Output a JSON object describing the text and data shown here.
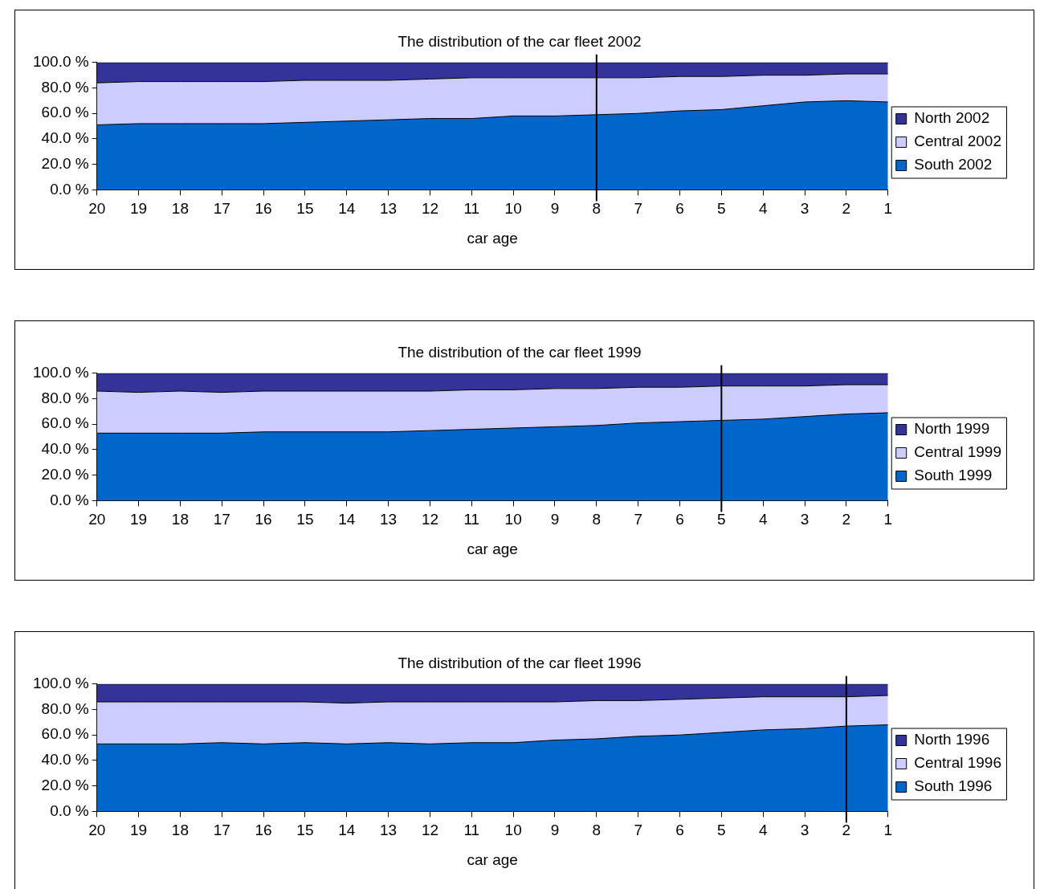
{
  "chart_data": [
    {
      "type": "area",
      "title": "The distribution of the car fleet 2002",
      "xlabel": "car age",
      "stacked": true,
      "legend": "right",
      "grid": false,
      "marker": "none",
      "categories": [
        "20",
        "19",
        "18",
        "17",
        "16",
        "15",
        "14",
        "13",
        "12",
        "11",
        "10",
        "9",
        "8",
        "7",
        "6",
        "5",
        "4",
        "3",
        "2",
        "1"
      ],
      "ylim": [
        0,
        100
      ],
      "yticks": [
        {
          "value": 0,
          "label": "0.0 %"
        },
        {
          "value": 20,
          "label": "20.0 %"
        },
        {
          "value": 40,
          "label": "40.0 %"
        },
        {
          "value": 60,
          "label": "60.0 %"
        },
        {
          "value": 80,
          "label": "80.0 %"
        },
        {
          "value": 100,
          "label": "100.0 %"
        }
      ],
      "ref_lines": [
        {
          "axis": "x",
          "value": "8",
          "color": "#000000"
        }
      ],
      "series": [
        {
          "name": "South 2002",
          "color": "#0066cc",
          "values": [
            51,
            52,
            52,
            52,
            52,
            53,
            54,
            55,
            56,
            56,
            58,
            58,
            59,
            60,
            62,
            63,
            66,
            69,
            70,
            69
          ]
        },
        {
          "name": "Central 2002",
          "color": "#ccccff",
          "values": [
            33,
            33,
            33,
            33,
            33,
            33,
            32,
            31,
            31,
            32,
            30,
            30,
            29,
            28,
            27,
            26,
            24,
            21,
            21,
            22
          ]
        },
        {
          "name": "North 2002",
          "color": "#333399",
          "values": [
            16,
            15,
            15,
            15,
            15,
            14,
            14,
            14,
            13,
            12,
            12,
            12,
            12,
            12,
            11,
            11,
            10,
            10,
            9,
            9
          ]
        }
      ]
    },
    {
      "type": "area",
      "title": "The distribution of the car fleet 1999",
      "xlabel": "car age",
      "stacked": true,
      "legend": "right",
      "grid": false,
      "marker": "none",
      "categories": [
        "20",
        "19",
        "18",
        "17",
        "16",
        "15",
        "14",
        "13",
        "12",
        "11",
        "10",
        "9",
        "8",
        "7",
        "6",
        "5",
        "4",
        "3",
        "2",
        "1"
      ],
      "ylim": [
        0,
        100
      ],
      "yticks": [
        {
          "value": 0,
          "label": "0.0 %"
        },
        {
          "value": 20,
          "label": "20.0 %"
        },
        {
          "value": 40,
          "label": "40.0 %"
        },
        {
          "value": 60,
          "label": "60.0 %"
        },
        {
          "value": 80,
          "label": "80.0 %"
        },
        {
          "value": 100,
          "label": "100.0 %"
        }
      ],
      "ref_lines": [
        {
          "axis": "x",
          "value": "5",
          "color": "#000000"
        }
      ],
      "series": [
        {
          "name": "South 1999",
          "color": "#0066cc",
          "values": [
            53,
            53,
            53,
            53,
            54,
            54,
            54,
            54,
            55,
            56,
            57,
            58,
            59,
            61,
            62,
            63,
            64,
            66,
            68,
            69
          ]
        },
        {
          "name": "Central 1999",
          "color": "#ccccff",
          "values": [
            33,
            32,
            33,
            32,
            32,
            32,
            32,
            32,
            31,
            31,
            30,
            30,
            29,
            28,
            27,
            27,
            26,
            24,
            23,
            22
          ]
        },
        {
          "name": "North 1999",
          "color": "#333399",
          "values": [
            14,
            15,
            14,
            15,
            14,
            14,
            14,
            14,
            14,
            13,
            13,
            12,
            12,
            11,
            11,
            10,
            10,
            10,
            9,
            9
          ]
        }
      ]
    },
    {
      "type": "area",
      "title": "The distribution of the car fleet 1996",
      "xlabel": "car age",
      "stacked": true,
      "legend": "right",
      "grid": false,
      "marker": "none",
      "categories": [
        "20",
        "19",
        "18",
        "17",
        "16",
        "15",
        "14",
        "13",
        "12",
        "11",
        "10",
        "9",
        "8",
        "7",
        "6",
        "5",
        "4",
        "3",
        "2",
        "1"
      ],
      "ylim": [
        0,
        100
      ],
      "yticks": [
        {
          "value": 0,
          "label": "0.0 %"
        },
        {
          "value": 20,
          "label": "20.0 %"
        },
        {
          "value": 40,
          "label": "40.0 %"
        },
        {
          "value": 60,
          "label": "60.0 %"
        },
        {
          "value": 80,
          "label": "80.0 %"
        },
        {
          "value": 100,
          "label": "100.0 %"
        }
      ],
      "ref_lines": [
        {
          "axis": "x",
          "value": "2",
          "color": "#000000"
        }
      ],
      "series": [
        {
          "name": "South 1996",
          "color": "#0066cc",
          "values": [
            53,
            53,
            53,
            54,
            53,
            54,
            53,
            54,
            53,
            54,
            54,
            56,
            57,
            59,
            60,
            62,
            64,
            65,
            67,
            68
          ]
        },
        {
          "name": "Central 1996",
          "color": "#ccccff",
          "values": [
            33,
            33,
            33,
            32,
            33,
            32,
            32,
            32,
            33,
            32,
            32,
            30,
            30,
            28,
            28,
            27,
            26,
            25,
            23,
            23
          ]
        },
        {
          "name": "North 1996",
          "color": "#333399",
          "values": [
            14,
            14,
            14,
            14,
            14,
            14,
            15,
            14,
            14,
            14,
            14,
            14,
            13,
            13,
            12,
            11,
            10,
            10,
            10,
            9
          ]
        }
      ]
    }
  ]
}
